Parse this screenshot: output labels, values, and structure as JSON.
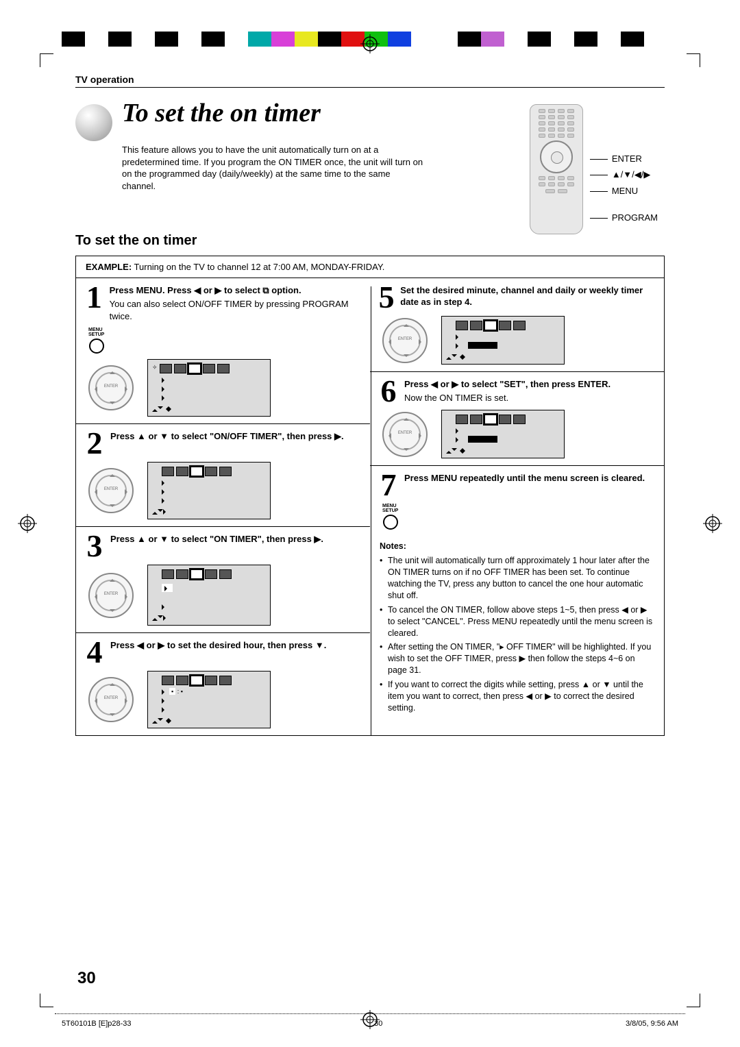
{
  "colorbar": [
    "#000000",
    "#ffffff",
    "#000000",
    "#ffffff",
    "#000000",
    "#ffffff",
    "#000000",
    "#ffffff",
    "#00a8a8",
    "#d840d8",
    "#e8e820",
    "#000000",
    "#e01010",
    "#10c010",
    "#1040e0",
    "#ffffff",
    "#ffffff",
    "#000000",
    "#c060d0",
    "#ffffff",
    "#000000",
    "#ffffff",
    "#000000",
    "#ffffff",
    "#000000"
  ],
  "header": {
    "section": "TV operation"
  },
  "title": "To set the on timer",
  "intro": "This feature allows you to have the unit automatically turn on at a predetermined time. If you program the ON TIMER once, the unit will turn on on the programmed day (daily/weekly) at the same time to the same channel.",
  "remote_labels": {
    "enter": "ENTER",
    "arrows": "▲/▼/◀/▶",
    "menu": "MENU",
    "program": "PROGRAM"
  },
  "sub_heading": "To set the on timer",
  "example_label": "EXAMPLE:",
  "example_text": " Turning on the TV to channel 12 at 7:00 AM,  MONDAY-FRIDAY.",
  "steps": {
    "s1": {
      "num": "1",
      "title": "Press MENU. Press ◀ or ▶ to select ⧉ option.",
      "body": "You can also select ON/OFF TIMER by pressing PROGRAM twice.",
      "menulabel": "MENU\nSETUP"
    },
    "s2": {
      "num": "2",
      "title": "Press ▲ or ▼ to select \"ON/OFF TIMER\", then press ▶."
    },
    "s3": {
      "num": "3",
      "title": "Press ▲ or ▼ to select \"ON TIMER\", then press ▶."
    },
    "s4": {
      "num": "4",
      "title": "Press ◀ or ▶ to set the desired hour, then press ▼."
    },
    "s5": {
      "num": "5",
      "title": "Set the desired minute, channel and daily or weekly timer date as in step 4."
    },
    "s6": {
      "num": "6",
      "title": "Press ◀ or ▶ to select \"SET\", then press ENTER.",
      "body": "Now the ON TIMER is set."
    },
    "s7": {
      "num": "7",
      "title": "Press MENU repeatedly until the menu screen is cleared.",
      "menulabel": "MENU\nSETUP"
    }
  },
  "notes_heading": "Notes:",
  "notes": [
    "The unit will automatically turn off approximately 1 hour later after the ON TIMER turns on if no OFF TIMER has been set. To continue watching the TV, press any button to cancel the one hour automatic shut off.",
    "To cancel the ON TIMER, follow above steps 1~5, then press ◀ or ▶ to select \"CANCEL\". Press MENU repeatedly until the menu screen is cleared.",
    "After setting the ON TIMER, \"▸ OFF TIMER\" will be highlighted. If you wish to set the OFF TIMER, press ▶ then follow the steps 4~6 on page 31.",
    "If you want to correct the digits while setting, press ▲ or ▼ until the item you want to correct, then press ◀ or ▶ to correct the desired setting."
  ],
  "page_number": "30",
  "footer": {
    "file": "5T60101B [E]p28-33",
    "page": "30",
    "date": "3/8/05, 9:56 AM"
  }
}
